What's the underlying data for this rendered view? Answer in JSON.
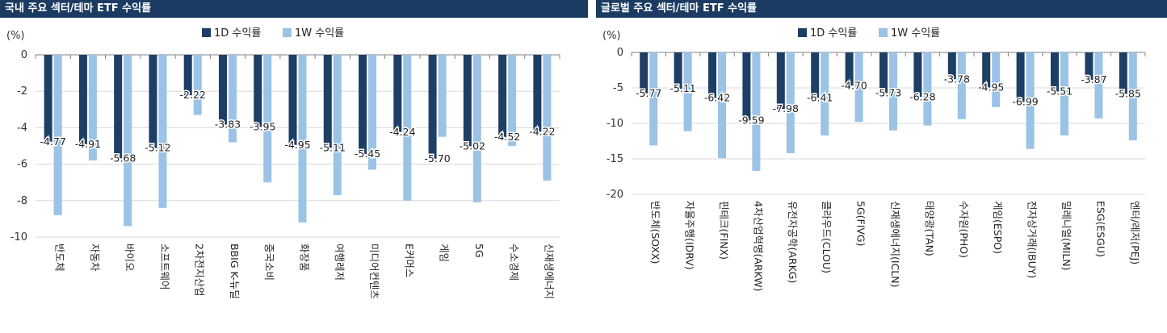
{
  "colors": {
    "d1": "#1d3f66",
    "w1": "#9ac3e6",
    "title_bar": "#1b3b62",
    "grid": "#d9d9d9",
    "axis": "#808080"
  },
  "chart_data": [
    {
      "type": "bar",
      "title": "국내 주요 섹터/테마 ETF 수익률",
      "unit_label": "(%)",
      "ylim": [
        -10,
        0
      ],
      "yticks": [
        0,
        -2,
        -4,
        -6,
        -8,
        -10
      ],
      "ytick_labels": [
        "0",
        "-2",
        "-4",
        "-6",
        "-8",
        "-10"
      ],
      "legend_position": "top",
      "categories": [
        "반도체",
        "자동차",
        "바이오",
        "소프트웨어",
        "2차전지산업",
        "BBIG K-뉴딜",
        "중국소비",
        "화장품",
        "여행레저",
        "미디어컨텐츠",
        "E커머스",
        "게임",
        "5G",
        "수소경제",
        "신재생에너지"
      ],
      "series": [
        {
          "name": "1D 수익률",
          "values": [
            -4.77,
            -4.91,
            -5.68,
            -5.12,
            -2.22,
            -3.83,
            -3.95,
            -4.95,
            -5.11,
            -5.45,
            -4.24,
            -5.7,
            -5.02,
            -4.52,
            -4.22
          ]
        },
        {
          "name": "1W 수익률",
          "values": [
            -8.8,
            -5.8,
            -9.4,
            -8.4,
            -3.3,
            -4.8,
            -7.0,
            -9.2,
            -7.7,
            -6.3,
            -8.0,
            -4.5,
            -8.1,
            -5.0,
            -6.9
          ]
        }
      ],
      "data_labels": [
        "-4.77",
        "-4.91",
        "-5.68",
        "-5.12",
        "-2.22",
        "-3.83",
        "-3.95",
        "-4.95",
        "-5.11",
        "-5.45",
        "-4.24",
        "-5.70",
        "-5.02",
        "-4.52",
        "-4.22"
      ]
    },
    {
      "type": "bar",
      "title": "글로벌 주요 섹터/테마 ETF 수익률",
      "unit_label": "(%)",
      "ylim": [
        -20,
        0
      ],
      "yticks": [
        0,
        -5,
        -10,
        -15,
        -20
      ],
      "ytick_labels": [
        "0",
        "-5",
        "-10",
        "-15",
        "-20"
      ],
      "legend_position": "top",
      "categories": [
        "반도체(SOXX)",
        "자율주행(IDRV)",
        "핀테크(FINX)",
        "4차산업혁명(ARKW)",
        "유전자공학(ARKG)",
        "클라우드(CLOU)",
        "5G(FIVG)",
        "신재생에너지(ICLN)",
        "태양광(TAN)",
        "수자원(PHO)",
        "게임(ESPO)",
        "전자상거래(IBUY)",
        "밀레니얼(MILN)",
        "ESG(ESGU)",
        "엔터/레저(PEJ)"
      ],
      "series": [
        {
          "name": "1D 수익률",
          "values": [
            -5.77,
            -5.11,
            -6.42,
            -9.59,
            -7.98,
            -6.41,
            -4.7,
            -5.73,
            -6.28,
            -3.78,
            -4.95,
            -6.99,
            -5.51,
            -3.87,
            -5.85
          ]
        },
        {
          "name": "1W 수익률",
          "values": [
            -13.1,
            -11.1,
            -14.9,
            -16.7,
            -14.2,
            -11.7,
            -9.8,
            -11.0,
            -10.3,
            -9.4,
            -7.7,
            -13.6,
            -11.7,
            -9.3,
            -12.4
          ]
        }
      ],
      "data_labels": [
        "-5.77",
        "-5.11",
        "-6.42",
        "-9.59",
        "-7.98",
        "-6.41",
        "-4.70",
        "-5.73",
        "-6.28",
        "-3.78",
        "-4.95",
        "-6.99",
        "-5.51",
        "-3.87",
        "-5.85"
      ]
    }
  ]
}
